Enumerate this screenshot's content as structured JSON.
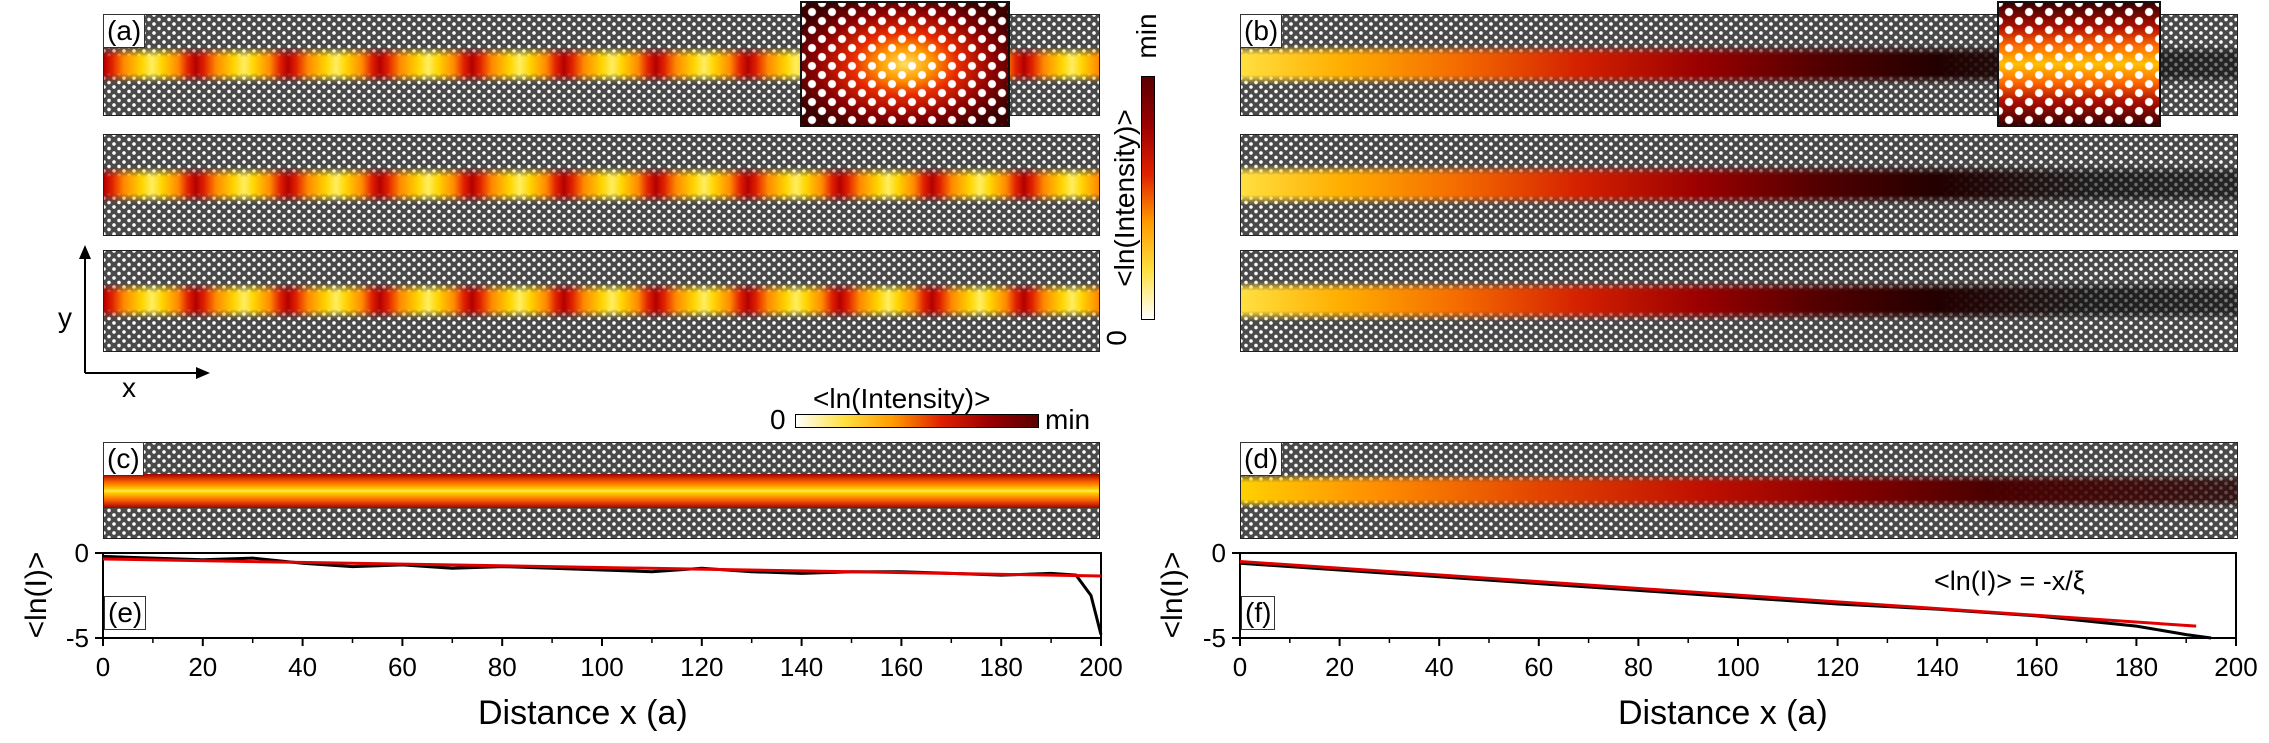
{
  "panels": {
    "a": "(a)",
    "b": "(b)",
    "c": "(c)",
    "d": "(d)",
    "e": "(e)",
    "f": "(f)"
  },
  "axes_indicator": {
    "x": "x",
    "y": "y"
  },
  "colorbar_vertical": {
    "label": "<ln(Intensity)>",
    "low": "0",
    "high": "min"
  },
  "colorbar_horizontal": {
    "label": "<ln(Intensity)>",
    "low": "0",
    "high": "min"
  },
  "colors": {
    "data_line": "#000000",
    "fit_line": "#e00000"
  },
  "chart_data": [
    {
      "type": "line",
      "panel": "(e)",
      "xlabel": "Distance x (a)",
      "ylabel": "<ln(I)>",
      "xlim": [
        0,
        200
      ],
      "ylim": [
        -5,
        0
      ],
      "xticks": [
        "0",
        "20",
        "40",
        "60",
        "80",
        "100",
        "120",
        "140",
        "160",
        "180",
        "200"
      ],
      "yticks": [
        "0",
        "-5"
      ],
      "series": [
        {
          "name": "data",
          "x": [
            0,
            10,
            20,
            30,
            40,
            50,
            60,
            70,
            80,
            90,
            100,
            110,
            120,
            130,
            140,
            150,
            160,
            170,
            180,
            190,
            195,
            198,
            200
          ],
          "y": [
            -0.2,
            -0.3,
            -0.4,
            -0.3,
            -0.6,
            -0.8,
            -0.7,
            -0.9,
            -0.8,
            -0.9,
            -1.0,
            -1.1,
            -0.9,
            -1.1,
            -1.2,
            -1.1,
            -1.1,
            -1.2,
            -1.3,
            -1.2,
            -1.3,
            -2.5,
            -4.8
          ]
        },
        {
          "name": "fit",
          "x": [
            0,
            200
          ],
          "y": [
            -0.35,
            -1.35
          ]
        }
      ]
    },
    {
      "type": "line",
      "panel": "(f)",
      "xlabel": "Distance x (a)",
      "ylabel": "<ln(I)>",
      "xlim": [
        0,
        200
      ],
      "ylim": [
        -5,
        0
      ],
      "xticks": [
        "0",
        "20",
        "40",
        "60",
        "80",
        "100",
        "120",
        "140",
        "160",
        "180",
        "200"
      ],
      "yticks": [
        "0",
        "-5"
      ],
      "annotation": "<ln(I)> = -x/ξ",
      "series": [
        {
          "name": "data",
          "x": [
            0,
            20,
            40,
            60,
            80,
            100,
            120,
            140,
            160,
            180,
            190,
            195
          ],
          "y": [
            -0.6,
            -1.0,
            -1.4,
            -1.8,
            -2.2,
            -2.6,
            -3.0,
            -3.3,
            -3.7,
            -4.3,
            -4.8,
            -5.0
          ]
        },
        {
          "name": "fit",
          "x": [
            0,
            192
          ],
          "y": [
            -0.5,
            -4.3
          ]
        }
      ]
    }
  ]
}
